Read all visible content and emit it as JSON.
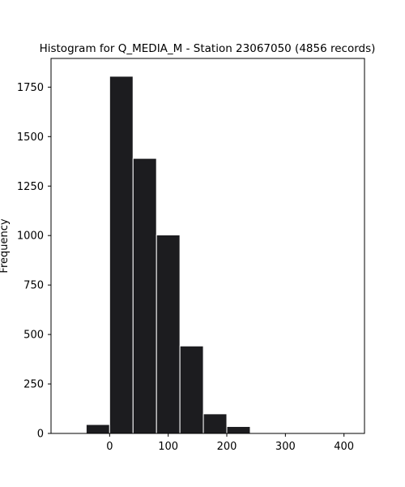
{
  "chart_data": {
    "type": "bar",
    "title": "Histogram for Q_MEDIA_M - Station 23067050 (4856 records)",
    "xlabel": "",
    "ylabel": "Frequency",
    "xlim": [
      -100,
      435
    ],
    "ylim": [
      0,
      1895
    ],
    "xticks": [
      0,
      100,
      200,
      300,
      400
    ],
    "yticks": [
      0,
      250,
      500,
      750,
      1000,
      1250,
      1500,
      1750
    ],
    "grid": false,
    "bin_edges": [
      -40,
      0,
      40,
      80,
      120,
      160,
      200,
      240,
      280,
      320,
      360,
      400
    ],
    "values": [
      45,
      1805,
      1390,
      1003,
      442,
      99,
      35,
      0,
      4,
      0,
      1
    ],
    "bar_color": "#1c1c1f",
    "edge_color": "#ffffff"
  }
}
